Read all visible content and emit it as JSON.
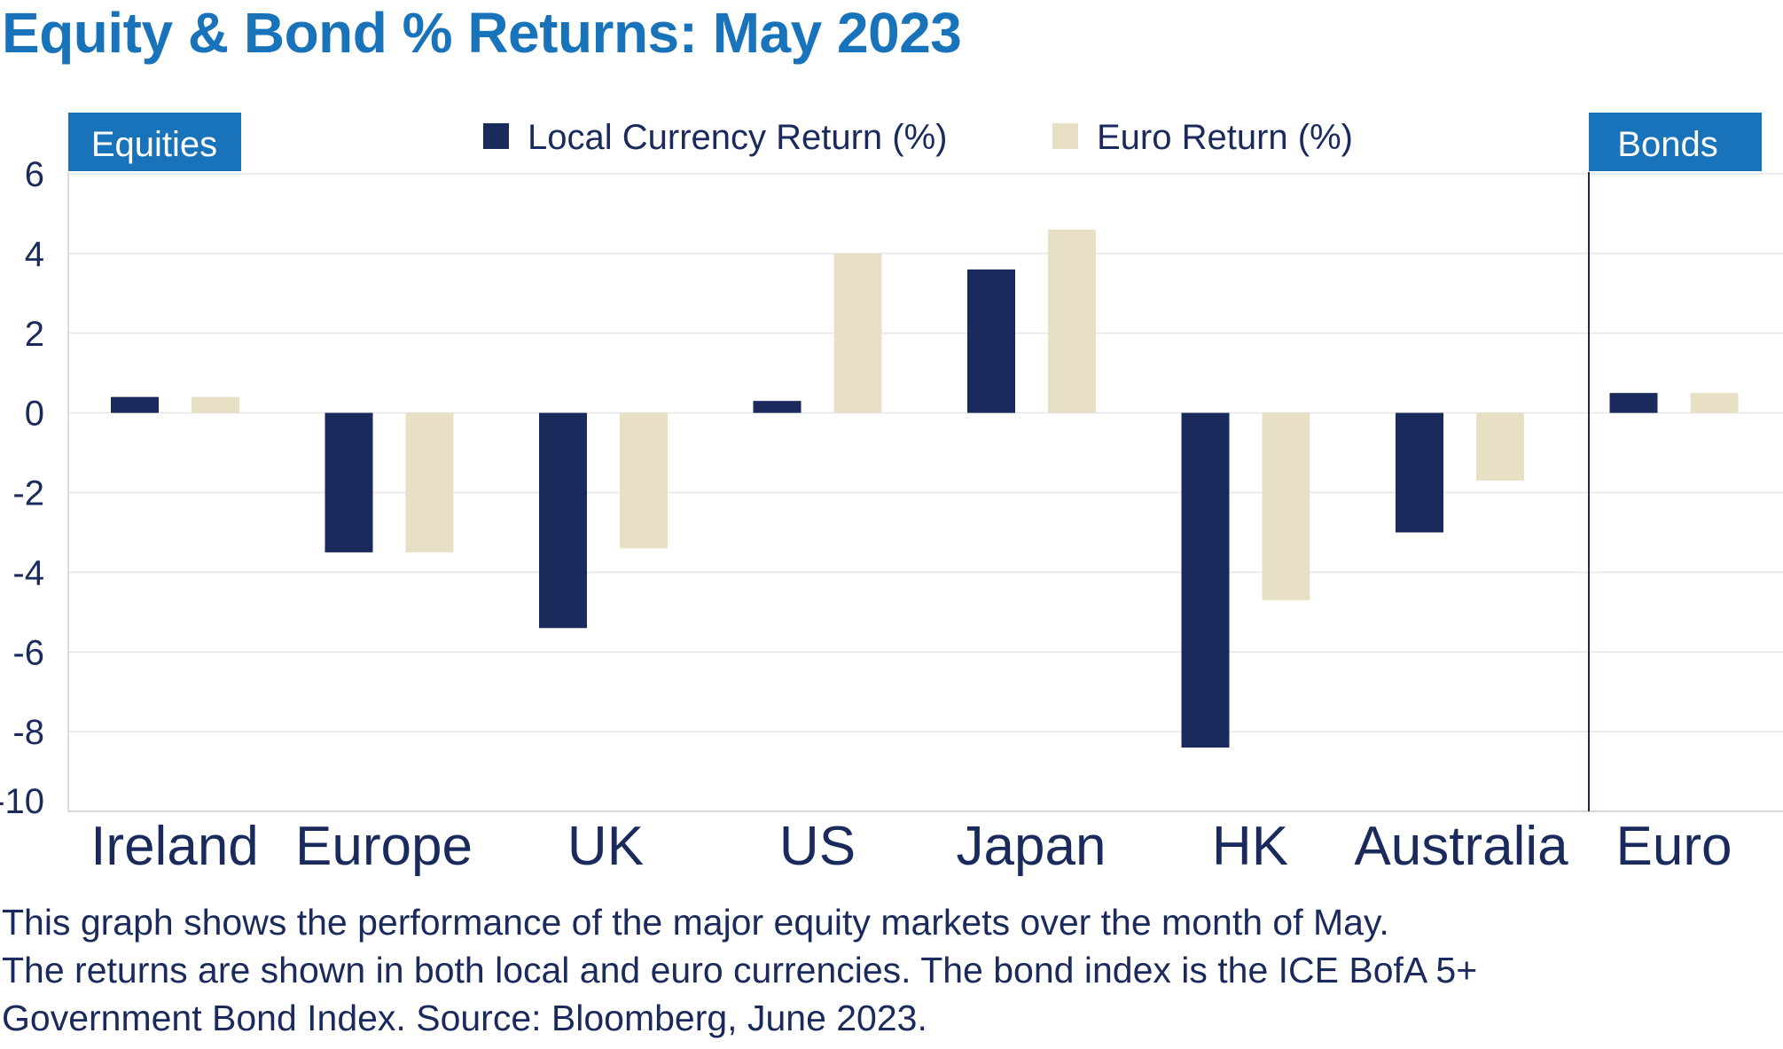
{
  "title": "Equity & Bond % Returns: May 2023",
  "caption": [
    "This graph shows the performance of the major equity markets over the month of May.",
    "The returns are shown in both local and euro currencies. The bond index is the ICE BofA 5+",
    "Government Bond Index. Source: Bloomberg, June 2023."
  ],
  "sections": {
    "equities": "Equities",
    "bonds": "Bonds"
  },
  "colors": {
    "local": "#1a2a5c",
    "euro": "#e8e0c4",
    "accent": "#1873ba",
    "grid": "#e6e6e6",
    "text": "#1a2a5c"
  },
  "chart_data": {
    "type": "bar",
    "categories": [
      "Ireland",
      "Europe",
      "UK",
      "US",
      "Japan",
      "HK",
      "Australia",
      "Euro"
    ],
    "series": [
      {
        "name": "Local Currency Return (%)",
        "values": [
          0.4,
          -3.5,
          -5.4,
          0.3,
          3.6,
          -8.4,
          -3.0,
          0.5
        ]
      },
      {
        "name": "Euro Return (%)",
        "values": [
          0.4,
          -3.5,
          -3.4,
          4.0,
          4.6,
          -4.7,
          -1.7,
          0.5
        ]
      }
    ],
    "ylim": [
      -10,
      6
    ],
    "yticks": [
      "6",
      "4",
      "2",
      "0",
      "-2",
      "-4",
      "-6",
      "-8",
      "-10"
    ],
    "grid": true,
    "legend_position": "top-center"
  }
}
